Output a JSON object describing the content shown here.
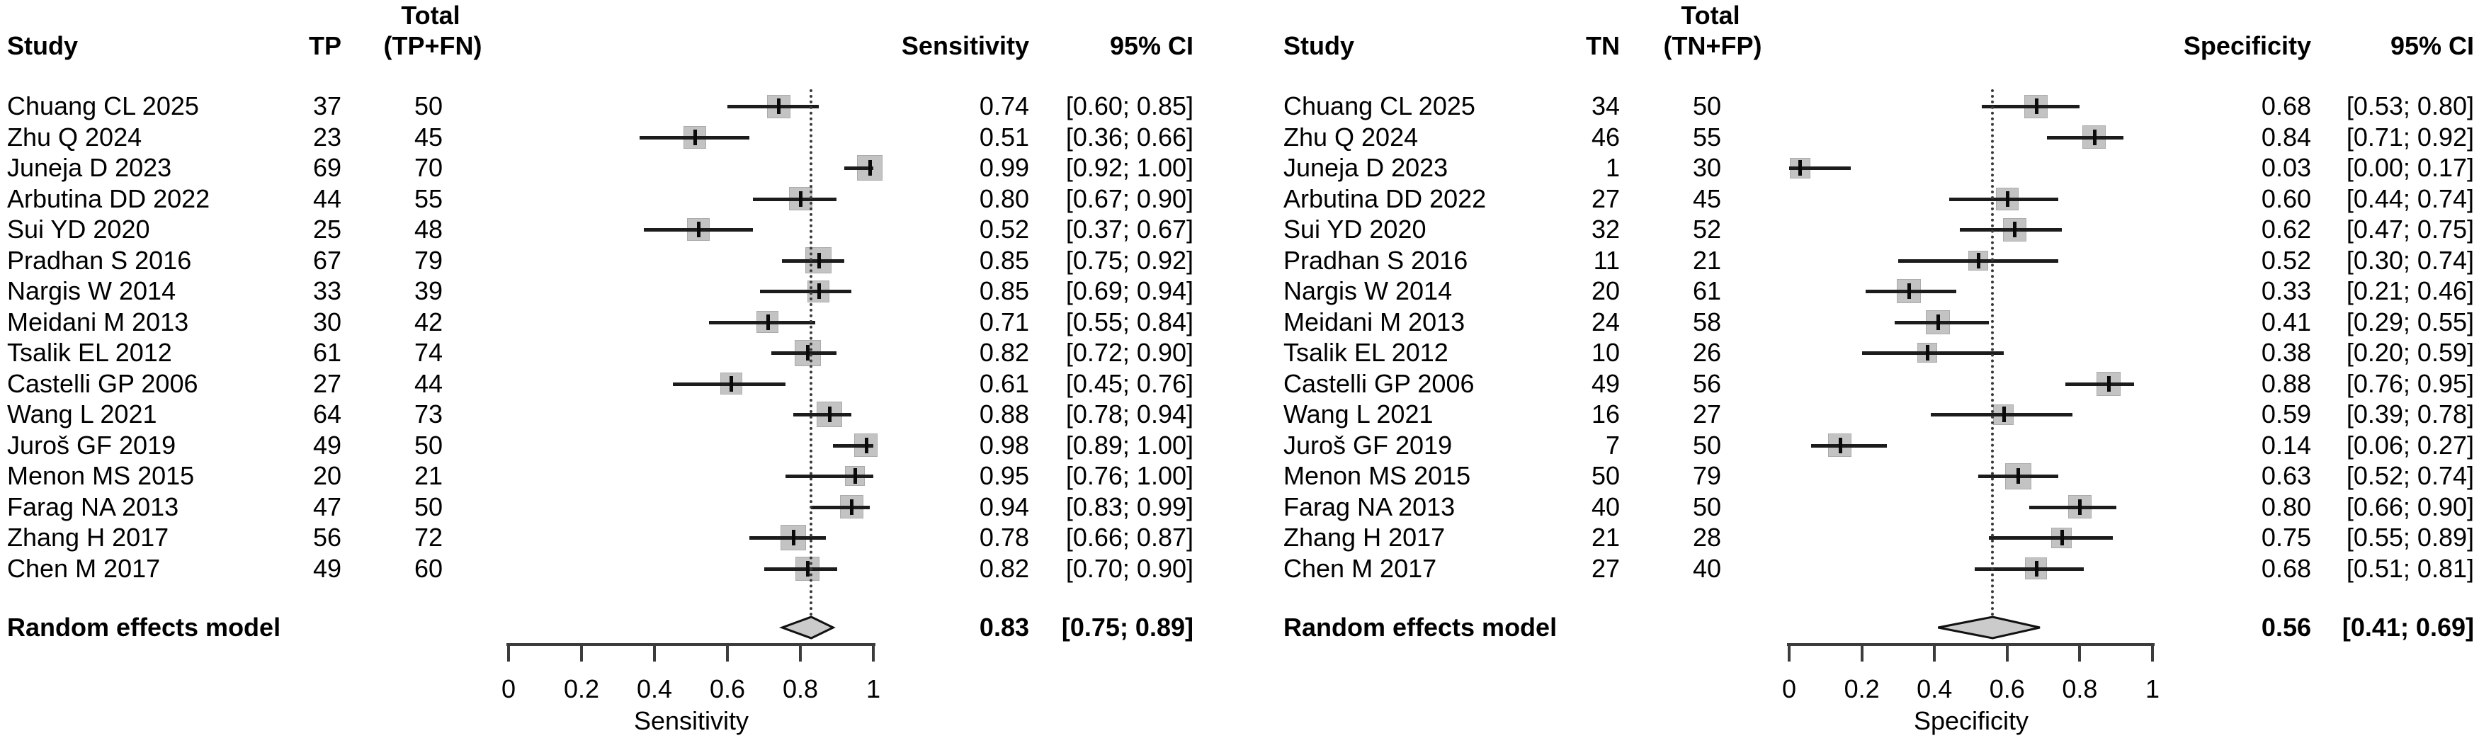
{
  "figure": {
    "colors": {
      "background": "#ffffff",
      "text": "#000000",
      "square_fill": "#c3c3c3",
      "diamond_fill": "#cbcbcb",
      "ci_line": "#1c1c1c",
      "axis": "#3c3c3c"
    }
  },
  "chart_data": {
    "type": "forest",
    "title": "",
    "panels": [
      {
        "name": "sensitivity",
        "col_headers": {
          "study": "Study",
          "count": "TP",
          "total_top": "Total",
          "total_bottom": "(TP+FN)",
          "value": "Sensitivity",
          "ci": "95% CI"
        },
        "axis": {
          "min": 0,
          "max": 1,
          "ticks": [
            0,
            0.2,
            0.4,
            0.6,
            0.8,
            1
          ],
          "tick_labels": [
            "0",
            "0.2",
            "0.4",
            "0.6",
            "0.8",
            "1"
          ],
          "label": "Sensitivity"
        },
        "pooled": {
          "label": "Random effects model",
          "value": 0.83,
          "lo": 0.75,
          "hi": 0.89,
          "value_text": "0.83",
          "ci_text": "[0.75; 0.89]"
        },
        "studies": [
          {
            "name": "Chuang CL 2025",
            "count": 37,
            "total": 50,
            "value": 0.74,
            "lo": 0.6,
            "hi": 0.85,
            "value_text": "0.74",
            "ci_text": "[0.60; 0.85]"
          },
          {
            "name": "Zhu Q 2024",
            "count": 23,
            "total": 45,
            "value": 0.51,
            "lo": 0.36,
            "hi": 0.66,
            "value_text": "0.51",
            "ci_text": "[0.36; 0.66]"
          },
          {
            "name": "Juneja D 2023",
            "count": 69,
            "total": 70,
            "value": 0.99,
            "lo": 0.92,
            "hi": 1.0,
            "value_text": "0.99",
            "ci_text": "[0.92; 1.00]"
          },
          {
            "name": "Arbutina DD 2022",
            "count": 44,
            "total": 55,
            "value": 0.8,
            "lo": 0.67,
            "hi": 0.9,
            "value_text": "0.80",
            "ci_text": "[0.67; 0.90]"
          },
          {
            "name": "Sui YD 2020",
            "count": 25,
            "total": 48,
            "value": 0.52,
            "lo": 0.37,
            "hi": 0.67,
            "value_text": "0.52",
            "ci_text": "[0.37; 0.67]"
          },
          {
            "name": "Pradhan S 2016",
            "count": 67,
            "total": 79,
            "value": 0.85,
            "lo": 0.75,
            "hi": 0.92,
            "value_text": "0.85",
            "ci_text": "[0.75; 0.92]"
          },
          {
            "name": "Nargis W 2014",
            "count": 33,
            "total": 39,
            "value": 0.85,
            "lo": 0.69,
            "hi": 0.94,
            "value_text": "0.85",
            "ci_text": "[0.69; 0.94]"
          },
          {
            "name": "Meidani M 2013",
            "count": 30,
            "total": 42,
            "value": 0.71,
            "lo": 0.55,
            "hi": 0.84,
            "value_text": "0.71",
            "ci_text": "[0.55; 0.84]"
          },
          {
            "name": "Tsalik EL 2012",
            "count": 61,
            "total": 74,
            "value": 0.82,
            "lo": 0.72,
            "hi": 0.9,
            "value_text": "0.82",
            "ci_text": "[0.72; 0.90]"
          },
          {
            "name": "Castelli GP 2006",
            "count": 27,
            "total": 44,
            "value": 0.61,
            "lo": 0.45,
            "hi": 0.76,
            "value_text": "0.61",
            "ci_text": "[0.45; 0.76]"
          },
          {
            "name": "Wang L 2021",
            "count": 64,
            "total": 73,
            "value": 0.88,
            "lo": 0.78,
            "hi": 0.94,
            "value_text": "0.88",
            "ci_text": "[0.78; 0.94]"
          },
          {
            "name": "Juroš GF 2019",
            "count": 49,
            "total": 50,
            "value": 0.98,
            "lo": 0.89,
            "hi": 1.0,
            "value_text": "0.98",
            "ci_text": "[0.89; 1.00]"
          },
          {
            "name": "Menon MS 2015",
            "count": 20,
            "total": 21,
            "value": 0.95,
            "lo": 0.76,
            "hi": 1.0,
            "value_text": "0.95",
            "ci_text": "[0.76; 1.00]"
          },
          {
            "name": "Farag NA 2013",
            "count": 47,
            "total": 50,
            "value": 0.94,
            "lo": 0.83,
            "hi": 0.99,
            "value_text": "0.94",
            "ci_text": "[0.83; 0.99]"
          },
          {
            "name": "Zhang H 2017",
            "count": 56,
            "total": 72,
            "value": 0.78,
            "lo": 0.66,
            "hi": 0.87,
            "value_text": "0.78",
            "ci_text": "[0.66; 0.87]"
          },
          {
            "name": "Chen M 2017",
            "count": 49,
            "total": 60,
            "value": 0.82,
            "lo": 0.7,
            "hi": 0.9,
            "value_text": "0.82",
            "ci_text": "[0.70; 0.90]"
          }
        ]
      },
      {
        "name": "specificity",
        "col_headers": {
          "study": "Study",
          "count": "TN",
          "total_top": "Total",
          "total_bottom": "(TN+FP)",
          "value": "Specificity",
          "ci": "95% CI"
        },
        "axis": {
          "min": 0,
          "max": 1,
          "ticks": [
            0,
            0.2,
            0.4,
            0.6,
            0.8,
            1
          ],
          "tick_labels": [
            "0",
            "0.2",
            "0.4",
            "0.6",
            "0.8",
            "1"
          ],
          "label": "Specificity"
        },
        "pooled": {
          "label": "Random effects model",
          "value": 0.56,
          "lo": 0.41,
          "hi": 0.69,
          "value_text": "0.56",
          "ci_text": "[0.41; 0.69]"
        },
        "studies": [
          {
            "name": "Chuang CL 2025",
            "count": 34,
            "total": 50,
            "value": 0.68,
            "lo": 0.53,
            "hi": 0.8,
            "value_text": "0.68",
            "ci_text": "[0.53; 0.80]"
          },
          {
            "name": "Zhu Q 2024",
            "count": 46,
            "total": 55,
            "value": 0.84,
            "lo": 0.71,
            "hi": 0.92,
            "value_text": "0.84",
            "ci_text": "[0.71; 0.92]"
          },
          {
            "name": "Juneja D 2023",
            "count": 1,
            "total": 30,
            "value": 0.03,
            "lo": 0.0,
            "hi": 0.17,
            "value_text": "0.03",
            "ci_text": "[0.00; 0.17]"
          },
          {
            "name": "Arbutina DD 2022",
            "count": 27,
            "total": 45,
            "value": 0.6,
            "lo": 0.44,
            "hi": 0.74,
            "value_text": "0.60",
            "ci_text": "[0.44; 0.74]"
          },
          {
            "name": "Sui YD 2020",
            "count": 32,
            "total": 52,
            "value": 0.62,
            "lo": 0.47,
            "hi": 0.75,
            "value_text": "0.62",
            "ci_text": "[0.47; 0.75]"
          },
          {
            "name": "Pradhan S 2016",
            "count": 11,
            "total": 21,
            "value": 0.52,
            "lo": 0.3,
            "hi": 0.74,
            "value_text": "0.52",
            "ci_text": "[0.30; 0.74]"
          },
          {
            "name": "Nargis W 2014",
            "count": 20,
            "total": 61,
            "value": 0.33,
            "lo": 0.21,
            "hi": 0.46,
            "value_text": "0.33",
            "ci_text": "[0.21; 0.46]"
          },
          {
            "name": "Meidani M 2013",
            "count": 24,
            "total": 58,
            "value": 0.41,
            "lo": 0.29,
            "hi": 0.55,
            "value_text": "0.41",
            "ci_text": "[0.29; 0.55]"
          },
          {
            "name": "Tsalik EL 2012",
            "count": 10,
            "total": 26,
            "value": 0.38,
            "lo": 0.2,
            "hi": 0.59,
            "value_text": "0.38",
            "ci_text": "[0.20; 0.59]"
          },
          {
            "name": "Castelli GP 2006",
            "count": 49,
            "total": 56,
            "value": 0.88,
            "lo": 0.76,
            "hi": 0.95,
            "value_text": "0.88",
            "ci_text": "[0.76; 0.95]"
          },
          {
            "name": "Wang L 2021",
            "count": 16,
            "total": 27,
            "value": 0.59,
            "lo": 0.39,
            "hi": 0.78,
            "value_text": "0.59",
            "ci_text": "[0.39; 0.78]"
          },
          {
            "name": "Juroš GF 2019",
            "count": 7,
            "total": 50,
            "value": 0.14,
            "lo": 0.06,
            "hi": 0.27,
            "value_text": "0.14",
            "ci_text": "[0.06; 0.27]"
          },
          {
            "name": "Menon MS 2015",
            "count": 50,
            "total": 79,
            "value": 0.63,
            "lo": 0.52,
            "hi": 0.74,
            "value_text": "0.63",
            "ci_text": "[0.52; 0.74]"
          },
          {
            "name": "Farag NA 2013",
            "count": 40,
            "total": 50,
            "value": 0.8,
            "lo": 0.66,
            "hi": 0.9,
            "value_text": "0.80",
            "ci_text": "[0.66; 0.90]"
          },
          {
            "name": "Zhang H 2017",
            "count": 21,
            "total": 28,
            "value": 0.75,
            "lo": 0.55,
            "hi": 0.89,
            "value_text": "0.75",
            "ci_text": "[0.55; 0.89]"
          },
          {
            "name": "Chen M 2017",
            "count": 27,
            "total": 40,
            "value": 0.68,
            "lo": 0.51,
            "hi": 0.81,
            "value_text": "0.68",
            "ci_text": "[0.51; 0.81]"
          }
        ]
      }
    ]
  }
}
